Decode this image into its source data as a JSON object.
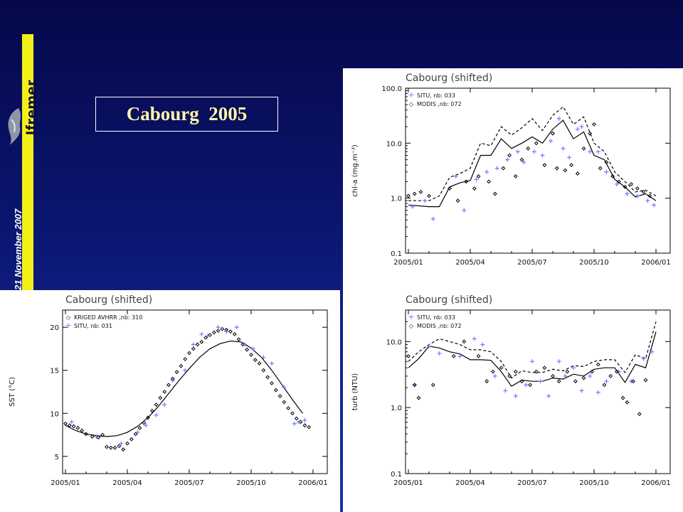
{
  "header": {
    "title": "Cabourg  2005",
    "brand": "Ifremer",
    "date": "21 November 2007"
  },
  "colors": {
    "situ": "#6b7bff",
    "sat": "#000000",
    "title_text": "#fff6a8",
    "brand_strip": "#f3ef18"
  },
  "icons": {
    "logo": "ifremer-fish-logo"
  },
  "chart_data": [
    {
      "id": "chl",
      "type": "line",
      "title": "Cabourg (shifted)",
      "ylabel": "chl-a (mg.m⁻³)",
      "xlabel": "",
      "log_y": true,
      "ylim": [
        0.1,
        100
      ],
      "xlim": [
        0,
        12
      ],
      "x_ticks": [
        "2005/01",
        "2005/04",
        "2005/07",
        "2005/10",
        "2006/01"
      ],
      "y_ticks": [
        "0.1",
        "1.0",
        "10.0",
        "100.0"
      ],
      "legend": [
        "SITU, nb: 033",
        "MODIS ,nb: 072"
      ],
      "legend_position": "top-left",
      "series": [
        {
          "kind": "solid_line",
          "x": [
            0,
            1,
            1.5,
            2,
            2.5,
            3,
            3.5,
            4,
            4.5,
            5,
            5.5,
            6,
            6.5,
            7,
            7.5,
            8,
            8.5,
            9,
            9.5,
            10,
            10.5,
            11,
            11.5,
            12
          ],
          "y": [
            0.75,
            0.7,
            0.7,
            1.6,
            1.9,
            2.1,
            6,
            6,
            12,
            8,
            10,
            13,
            10,
            18,
            26,
            12,
            16,
            6,
            5,
            2.2,
            1.6,
            1.05,
            1.2,
            0.9
          ]
        },
        {
          "kind": "dashed_line",
          "x": [
            0,
            1,
            1.5,
            2,
            2.5,
            3,
            3.5,
            4,
            4.5,
            5,
            5.5,
            6,
            6.5,
            7,
            7.5,
            8,
            8.5,
            9,
            9.5,
            10,
            10.5,
            11,
            11.5,
            12
          ],
          "y": [
            0.9,
            0.9,
            1.1,
            2.4,
            2.8,
            3.5,
            10,
            9,
            20,
            14,
            19,
            28,
            17,
            32,
            46,
            22,
            30,
            10,
            7,
            3,
            2,
            1.3,
            1.4,
            1.1
          ]
        },
        {
          "kind": "situ_plus",
          "x": [
            0.2,
            0.8,
            1.2,
            2.3,
            2.7,
            3.3,
            3.8,
            4.3,
            4.8,
            5.3,
            5.6,
            6.1,
            6.5,
            6.9,
            7.3,
            7.5,
            7.8,
            8.2,
            8.4,
            8.8,
            9.2,
            9.6,
            10.1,
            10.6,
            11.1,
            11.6,
            11.9
          ],
          "y": [
            0.7,
            0.9,
            0.42,
            2.5,
            0.6,
            2.2,
            3.0,
            3.5,
            5,
            7,
            4.5,
            7,
            6,
            11,
            28,
            8,
            5.5,
            18,
            20,
            7,
            7,
            3,
            1.8,
            1.2,
            1.1,
            0.9,
            0.75
          ]
        },
        {
          "kind": "sat_diamond",
          "x": [
            0,
            0.3,
            0.6,
            1.0,
            2.0,
            2.4,
            2.8,
            3.2,
            3.4,
            3.9,
            4.2,
            4.6,
            4.9,
            5.2,
            5.5,
            5.8,
            6.2,
            6.6,
            7.0,
            7.2,
            7.6,
            7.9,
            8.2,
            8.5,
            8.8,
            9.0,
            9.3,
            9.6,
            9.9,
            10.2,
            10.5,
            10.8,
            11.1,
            11.4,
            11.7
          ],
          "y": [
            1.1,
            1.2,
            1.3,
            1.1,
            1.5,
            0.9,
            2.0,
            1.5,
            2.5,
            2.0,
            1.2,
            3.5,
            6,
            2.5,
            5,
            8,
            10,
            4,
            15,
            3.5,
            3.2,
            4,
            2.8,
            8,
            15,
            22,
            3.5,
            4.5,
            2.5,
            2.0,
            1.6,
            1.8,
            1.5,
            1.3,
            1.1
          ]
        }
      ]
    },
    {
      "id": "sst",
      "type": "line",
      "title": "Cabourg (shifted)",
      "ylabel": "SST (°C)",
      "xlabel": "",
      "log_y": false,
      "ylim": [
        3,
        22
      ],
      "xlim": [
        0,
        12
      ],
      "x_ticks": [
        "2005/01",
        "2005/04",
        "2005/07",
        "2005/10",
        "2006/01"
      ],
      "y_ticks": [
        "5",
        "10",
        "15",
        "20"
      ],
      "legend": [
        "KRIGED AVHRR ,nb: 310",
        "SITU, nb: 031"
      ],
      "legend_position": "top-left",
      "series": [
        {
          "kind": "solid_line",
          "x": [
            0,
            0.5,
            1,
            1.5,
            2,
            2.5,
            3,
            3.5,
            4,
            4.5,
            5,
            5.5,
            6,
            6.5,
            7,
            7.5,
            8,
            8.5,
            9,
            9.5,
            10,
            10.5,
            11,
            11.5
          ],
          "y": [
            8.6,
            8.0,
            7.6,
            7.4,
            7.3,
            7.4,
            7.8,
            8.5,
            9.5,
            10.8,
            12.3,
            13.8,
            15.2,
            16.5,
            17.5,
            18.1,
            18.4,
            18.3,
            17.6,
            16.5,
            15.0,
            13.3,
            11.6,
            10.0
          ]
        },
        {
          "kind": "sat_diamond",
          "x": [
            0,
            0.2,
            0.4,
            0.6,
            0.8,
            1.0,
            1.3,
            1.6,
            1.8,
            2.0,
            2.2,
            2.4,
            2.6,
            2.8,
            3.0,
            3.2,
            3.4,
            3.6,
            3.8,
            4.0,
            4.2,
            4.4,
            4.6,
            4.8,
            5.0,
            5.2,
            5.4,
            5.6,
            5.8,
            6.0,
            6.2,
            6.4,
            6.6,
            6.8,
            7.0,
            7.2,
            7.4,
            7.6,
            7.8,
            8.0,
            8.2,
            8.4,
            8.6,
            8.8,
            9.0,
            9.2,
            9.4,
            9.6,
            9.8,
            10.0,
            10.2,
            10.4,
            10.6,
            10.8,
            11.0,
            11.2,
            11.4,
            11.6,
            11.8
          ],
          "y": [
            8.8,
            8.6,
            8.5,
            8.3,
            8.0,
            7.6,
            7.3,
            7.2,
            7.5,
            6.1,
            6.0,
            6.0,
            6.2,
            5.8,
            6.5,
            7.0,
            7.6,
            8.3,
            8.9,
            9.5,
            10.3,
            11.0,
            11.8,
            12.5,
            13.3,
            14.0,
            14.8,
            15.5,
            16.3,
            17.0,
            17.5,
            18.0,
            18.3,
            18.8,
            19.1,
            19.4,
            19.6,
            19.8,
            19.7,
            19.5,
            19.2,
            18.6,
            18.0,
            17.4,
            16.8,
            16.2,
            15.8,
            15.0,
            14.2,
            13.5,
            12.7,
            12.0,
            11.3,
            10.6,
            10.0,
            9.4,
            9.0,
            8.6,
            8.4
          ]
        },
        {
          "kind": "situ_plus",
          "x": [
            0.3,
            1.5,
            2.7,
            3.5,
            3.9,
            4.4,
            4.8,
            5.2,
            5.8,
            6.2,
            6.6,
            6.9,
            7.4,
            7.8,
            8.3,
            8.7,
            9.1,
            9.6,
            10.0,
            10.6,
            11.1,
            11.3,
            11.6
          ],
          "y": [
            9.0,
            7.3,
            6.5,
            7.8,
            8.6,
            9.8,
            11.0,
            13.8,
            15.0,
            18.0,
            19.2,
            19.0,
            20.0,
            19.5,
            20.0,
            18.0,
            17.5,
            16.5,
            15.8,
            13.0,
            8.8,
            9.0,
            9.2
          ]
        }
      ]
    },
    {
      "id": "turb",
      "type": "line",
      "title": "Cabourg (shifted)",
      "ylabel": "turb (NTU)",
      "xlabel": "",
      "log_y": true,
      "ylim": [
        0.1,
        30
      ],
      "xlim": [
        0,
        12
      ],
      "x_ticks": [
        "2005/01",
        "2005/04",
        "2005/07",
        "2005/10",
        "2006/01"
      ],
      "y_ticks": [
        "0.1",
        "1.0",
        "10.0"
      ],
      "legend": [
        "SITU, nb: 033",
        "MODIS ,nb: 072"
      ],
      "legend_position": "top-left",
      "series": [
        {
          "kind": "solid_line",
          "x": [
            0,
            0.5,
            1,
            1.5,
            2,
            2.5,
            3,
            3.5,
            4,
            4.5,
            5,
            5.5,
            6,
            6.5,
            7,
            7.5,
            8,
            8.5,
            9,
            9.5,
            10,
            10.5,
            11,
            11.5,
            12
          ],
          "y": [
            4,
            5.5,
            8.5,
            8,
            7,
            6.5,
            5.3,
            5.3,
            5.2,
            3.5,
            2.1,
            2.6,
            2.5,
            2.5,
            2.8,
            2.7,
            3.2,
            3,
            3.8,
            4,
            4,
            2.4,
            4.5,
            4,
            14
          ]
        },
        {
          "kind": "dashed_line",
          "x": [
            0,
            0.5,
            1,
            1.5,
            2,
            2.5,
            3,
            3.5,
            4,
            4.5,
            5,
            5.5,
            6,
            6.5,
            7,
            7.5,
            8,
            8.5,
            9,
            9.5,
            10,
            10.5,
            11,
            11.5,
            12
          ],
          "y": [
            5,
            7,
            9,
            11,
            10,
            9,
            7.5,
            7.5,
            7,
            5,
            2.8,
            3.6,
            3.4,
            3.4,
            3.8,
            3.6,
            4.3,
            4.2,
            5,
            5.3,
            5.3,
            3.4,
            6.3,
            5.5,
            20
          ]
        },
        {
          "kind": "situ_plus",
          "x": [
            0.3,
            1.0,
            1.5,
            2.5,
            3.2,
            3.6,
            4.2,
            4.7,
            5.2,
            5.7,
            6.0,
            6.4,
            6.8,
            7.3,
            7.6,
            8.0,
            8.4,
            8.8,
            9.2,
            9.6,
            10.2,
            10.8,
            11.4,
            11.8
          ],
          "y": [
            2.2,
            8.5,
            6.6,
            6,
            11,
            9,
            3,
            1.8,
            1.5,
            2.2,
            5,
            2.5,
            1.5,
            5,
            3,
            4,
            1.8,
            3,
            1.7,
            2.5,
            3.5,
            2.5,
            5.5,
            7
          ]
        },
        {
          "kind": "sat_diamond",
          "x": [
            0,
            0.3,
            0.5,
            1.2,
            2.2,
            2.7,
            3.4,
            3.8,
            4.1,
            4.5,
            4.9,
            5.2,
            5.5,
            5.9,
            6.2,
            6.6,
            7.0,
            7.3,
            7.7,
            8.1,
            8.5,
            8.9,
            9.2,
            9.5,
            9.8,
            10.1,
            10.4,
            10.6,
            10.9,
            11.2,
            11.5
          ],
          "y": [
            6,
            2.2,
            1.4,
            2.2,
            6,
            10,
            6,
            2.5,
            3.5,
            4,
            3,
            3.5,
            2.5,
            2.2,
            3.5,
            4,
            3,
            2.5,
            3.5,
            2.5,
            2.8,
            3.5,
            4.5,
            2.2,
            3,
            3.5,
            1.4,
            1.2,
            2.5,
            0.8,
            2.6
          ]
        }
      ]
    }
  ]
}
